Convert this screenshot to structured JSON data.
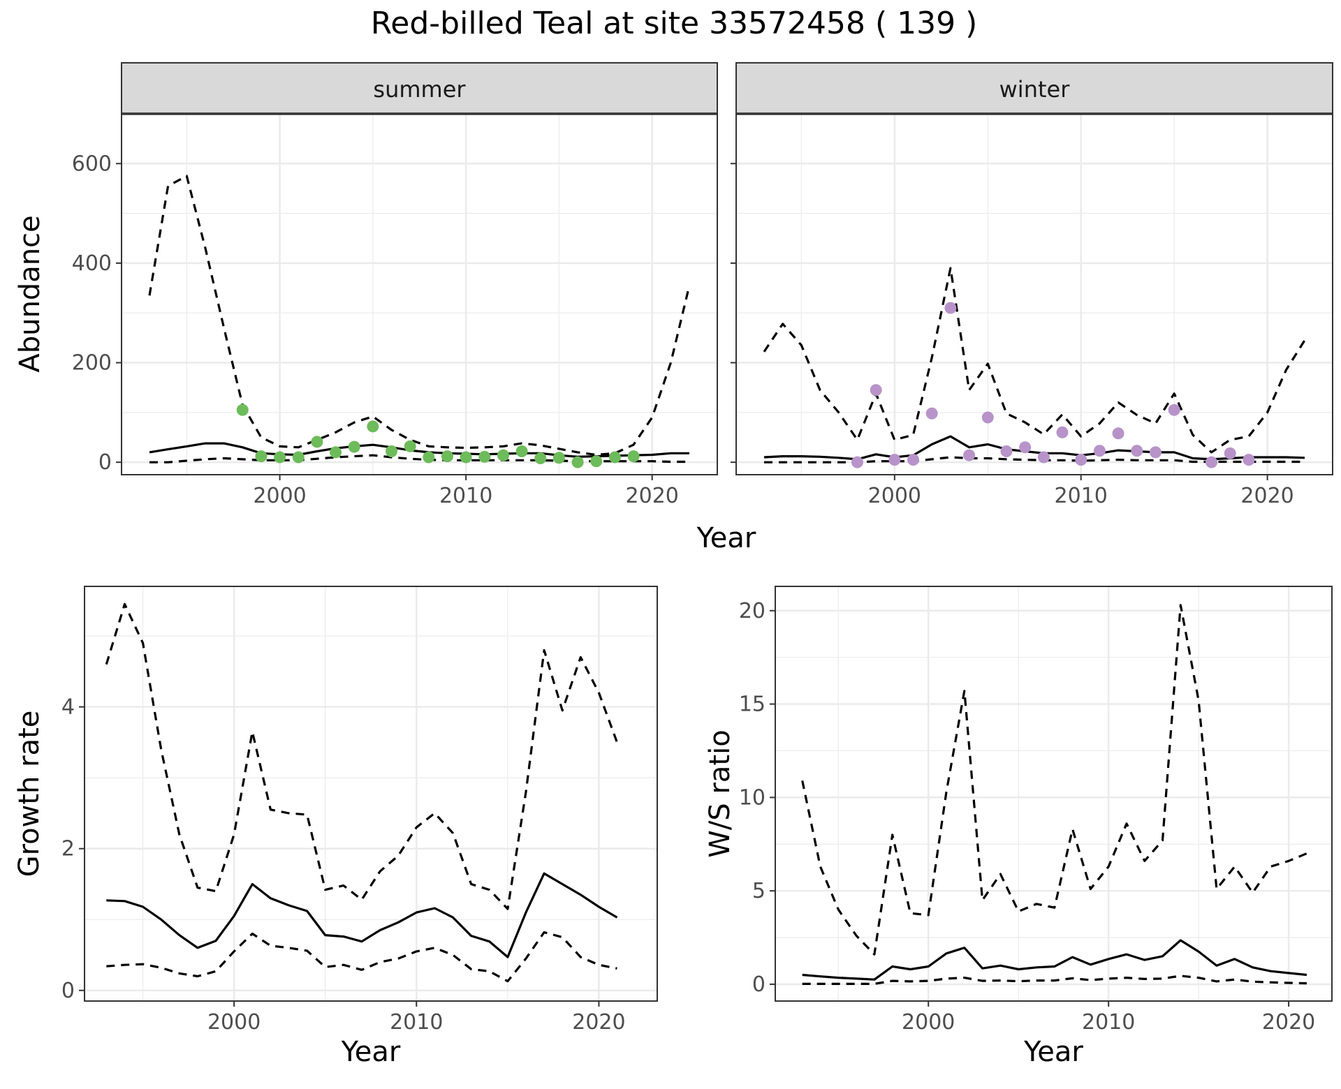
{
  "title": "Red-billed Teal at site 33572458 ( 139 )",
  "colors": {
    "summer_points": "#6dbb5a",
    "winter_points": "#b793c9",
    "lines": "#000000",
    "grid_major": "#ebebeb",
    "strip_background": "#d9d9d9",
    "panel_border": "#333333"
  },
  "chart_data": [
    {
      "type": "line",
      "panel": "abundance",
      "xlabel": "Year",
      "ylabel": "Abundance",
      "ylim": [
        -25,
        700
      ],
      "xlim": [
        1991.5,
        2023.5
      ],
      "yticks": [
        0,
        200,
        400,
        600
      ],
      "xticks": [
        2000,
        2010,
        2020
      ],
      "grid": true,
      "facets": [
        {
          "strip": "summer",
          "point_color": "summer_points",
          "mean": {
            "x": [
              1993,
              1994,
              1995,
              1996,
              1997,
              1998,
              1999,
              2000,
              2001,
              2002,
              2003,
              2004,
              2005,
              2006,
              2007,
              2008,
              2009,
              2010,
              2011,
              2012,
              2013,
              2014,
              2015,
              2016,
              2017,
              2018,
              2019,
              2020,
              2021,
              2022
            ],
            "y": [
              20,
              26,
              32,
              38,
              38,
              30,
              18,
              16,
              15,
              22,
              28,
              32,
              35,
              30,
              24,
              20,
              18,
              17,
              16,
              17,
              18,
              18,
              14,
              11,
              12,
              13,
              14,
              15,
              18,
              18
            ]
          },
          "upper": {
            "x": [
              1993,
              1994,
              1995,
              1996,
              1997,
              1998,
              1999,
              2000,
              2001,
              2002,
              2003,
              2004,
              2005,
              2006,
              2007,
              2008,
              2009,
              2010,
              2011,
              2012,
              2013,
              2014,
              2015,
              2016,
              2017,
              2018,
              2019,
              2020,
              2021,
              2022
            ],
            "y": [
              335,
              555,
              575,
              430,
              270,
              115,
              50,
              32,
              30,
              45,
              60,
              80,
              92,
              65,
              45,
              32,
              30,
              29,
              30,
              32,
              38,
              34,
              27,
              20,
              15,
              18,
              35,
              90,
              200,
              355
            ]
          },
          "lower": {
            "x": [
              1993,
              1994,
              1995,
              1996,
              1997,
              1998,
              1999,
              2000,
              2001,
              2002,
              2003,
              2004,
              2005,
              2006,
              2007,
              2008,
              2009,
              2010,
              2011,
              2012,
              2013,
              2014,
              2015,
              2016,
              2017,
              2018,
              2019,
              2020,
              2021,
              2022
            ],
            "y": [
              0,
              0,
              3,
              6,
              8,
              6,
              4,
              4,
              4,
              7,
              10,
              12,
              14,
              10,
              7,
              5,
              4,
              4,
              4,
              4,
              4,
              4,
              3,
              2,
              2,
              2,
              2,
              2,
              1,
              1
            ]
          },
          "observed": {
            "x": [
              1998,
              1999,
              2000,
              2001,
              2002,
              2003,
              2004,
              2005,
              2006,
              2007,
              2008,
              2009,
              2010,
              2011,
              2012,
              2013,
              2014,
              2015,
              2016,
              2017,
              2018,
              2019
            ],
            "y": [
              105,
              12,
              10,
              10,
              41,
              20,
              31,
              72,
              22,
              32,
              10,
              12,
              10,
              11,
              14,
              22,
              8,
              9,
              0,
              2,
              10,
              12
            ]
          }
        },
        {
          "strip": "winter",
          "point_color": "winter_points",
          "mean": {
            "x": [
              1993,
              1994,
              1995,
              1996,
              1997,
              1998,
              1999,
              2000,
              2001,
              2002,
              2003,
              2004,
              2005,
              2006,
              2007,
              2008,
              2009,
              2010,
              2011,
              2012,
              2013,
              2014,
              2015,
              2016,
              2017,
              2018,
              2019,
              2020,
              2021,
              2022
            ],
            "y": [
              10,
              12,
              12,
              11,
              9,
              6,
              16,
              10,
              14,
              36,
              52,
              30,
              36,
              26,
              22,
              18,
              18,
              14,
              18,
              24,
              22,
              20,
              20,
              8,
              6,
              8,
              10,
              10,
              10,
              9
            ]
          },
          "upper": {
            "x": [
              1993,
              1994,
              1995,
              1996,
              1997,
              1998,
              1999,
              2000,
              2001,
              2002,
              2003,
              2004,
              2005,
              2006,
              2007,
              2008,
              2009,
              2010,
              2011,
              2012,
              2013,
              2014,
              2015,
              2016,
              2017,
              2018,
              2019,
              2020,
              2021,
              2022
            ],
            "y": [
              222,
              278,
              235,
              145,
              100,
              45,
              138,
              45,
              55,
              210,
              390,
              145,
              198,
              98,
              80,
              56,
              96,
              52,
              78,
              120,
              95,
              78,
              138,
              55,
              20,
              45,
              52,
              100,
              185,
              245
            ]
          },
          "lower": {
            "x": [
              1993,
              1994,
              1995,
              1996,
              1997,
              1998,
              1999,
              2000,
              2001,
              2002,
              2003,
              2004,
              2005,
              2006,
              2007,
              2008,
              2009,
              2010,
              2011,
              2012,
              2013,
              2014,
              2015,
              2016,
              2017,
              2018,
              2019,
              2020,
              2021,
              2022
            ],
            "y": [
              0,
              0,
              0,
              0,
              0,
              0,
              2,
              2,
              2,
              6,
              10,
              8,
              8,
              6,
              5,
              4,
              4,
              3,
              4,
              5,
              4,
              4,
              4,
              1,
              1,
              1,
              1,
              1,
              1,
              1
            ]
          },
          "observed": {
            "x": [
              1998,
              1999,
              2000,
              2001,
              2002,
              2003,
              2004,
              2005,
              2006,
              2007,
              2008,
              2009,
              2010,
              2011,
              2012,
              2013,
              2014,
              2015,
              2017,
              2018,
              2019
            ],
            "y": [
              0,
              145,
              5,
              5,
              98,
              310,
              14,
              90,
              22,
              30,
              10,
              60,
              5,
              23,
              58,
              23,
              20,
              105,
              0,
              18,
              5
            ]
          }
        }
      ]
    },
    {
      "type": "line",
      "panel": "growth",
      "xlabel": "Year",
      "ylabel": "Growth rate",
      "ylim": [
        -0.15,
        5.7
      ],
      "xlim": [
        1991.8,
        2023.2
      ],
      "yticks": [
        0,
        2,
        4
      ],
      "xticks": [
        2000,
        2010,
        2020
      ],
      "grid": true,
      "mean": {
        "x": [
          1993,
          1994,
          1995,
          1996,
          1997,
          1998,
          1999,
          2000,
          2001,
          2002,
          2003,
          2004,
          2005,
          2006,
          2007,
          2008,
          2009,
          2010,
          2011,
          2012,
          2013,
          2014,
          2015,
          2016,
          2017,
          2018,
          2019,
          2020,
          2021
        ],
        "y": [
          1.27,
          1.26,
          1.18,
          1.0,
          0.78,
          0.6,
          0.7,
          1.05,
          1.5,
          1.3,
          1.2,
          1.12,
          0.78,
          0.76,
          0.69,
          0.85,
          0.96,
          1.1,
          1.16,
          1.03,
          0.77,
          0.69,
          0.47,
          1.1,
          1.65,
          1.5,
          1.35,
          1.18,
          1.03
        ]
      },
      "upper": {
        "x": [
          1993,
          1994,
          1995,
          1996,
          1997,
          1998,
          1999,
          2000,
          2001,
          2002,
          2003,
          2004,
          2005,
          2006,
          2007,
          2008,
          2009,
          2010,
          2011,
          2012,
          2013,
          2014,
          2015,
          2016,
          2017,
          2018,
          2019,
          2020,
          2021
        ],
        "y": [
          4.6,
          5.45,
          4.9,
          3.4,
          2.2,
          1.45,
          1.4,
          2.2,
          3.65,
          2.55,
          2.5,
          2.48,
          1.42,
          1.48,
          1.28,
          1.68,
          1.9,
          2.3,
          2.5,
          2.22,
          1.5,
          1.42,
          1.15,
          2.8,
          4.8,
          3.95,
          4.7,
          4.2,
          3.5
        ]
      },
      "lower": {
        "x": [
          1993,
          1994,
          1995,
          1996,
          1997,
          1998,
          1999,
          2000,
          2001,
          2002,
          2003,
          2004,
          2005,
          2006,
          2007,
          2008,
          2009,
          2010,
          2011,
          2012,
          2013,
          2014,
          2015,
          2016,
          2017,
          2018,
          2019,
          2020,
          2021
        ],
        "y": [
          0.34,
          0.36,
          0.37,
          0.32,
          0.24,
          0.2,
          0.27,
          0.55,
          0.8,
          0.63,
          0.6,
          0.56,
          0.33,
          0.36,
          0.29,
          0.4,
          0.45,
          0.55,
          0.6,
          0.5,
          0.3,
          0.27,
          0.13,
          0.45,
          0.82,
          0.75,
          0.47,
          0.36,
          0.31
        ]
      }
    },
    {
      "type": "line",
      "panel": "ratio",
      "xlabel": "Year",
      "ylabel": "W/S ratio",
      "ylim": [
        -0.9,
        21.3
      ],
      "xlim": [
        1991.5,
        2022.4
      ],
      "yticks": [
        0,
        5,
        10,
        15,
        20
      ],
      "xticks": [
        2000,
        2010,
        2020
      ],
      "grid": true,
      "mean": {
        "x": [
          1993,
          1994,
          1995,
          1996,
          1997,
          1998,
          1999,
          2000,
          2001,
          2002,
          2003,
          2004,
          2005,
          2006,
          2007,
          2008,
          2009,
          2010,
          2011,
          2012,
          2013,
          2014,
          2015,
          2016,
          2017,
          2018,
          2019,
          2020,
          2021
        ],
        "y": [
          0.5,
          0.42,
          0.35,
          0.3,
          0.25,
          0.95,
          0.8,
          0.95,
          1.65,
          1.95,
          0.85,
          1.0,
          0.8,
          0.9,
          0.95,
          1.45,
          1.05,
          1.35,
          1.6,
          1.3,
          1.5,
          2.35,
          1.75,
          1.0,
          1.35,
          0.9,
          0.7,
          0.6,
          0.5
        ]
      },
      "upper": {
        "x": [
          1993,
          1994,
          1995,
          1996,
          1997,
          1998,
          1999,
          2000,
          2001,
          2002,
          2003,
          2004,
          2005,
          2006,
          2007,
          2008,
          2009,
          2010,
          2011,
          2012,
          2013,
          2014,
          2015,
          2016,
          2017,
          2018,
          2019,
          2020,
          2021
        ],
        "y": [
          10.9,
          6.3,
          4.0,
          2.6,
          1.6,
          8.0,
          3.8,
          3.7,
          10.3,
          15.7,
          4.5,
          5.9,
          3.9,
          4.3,
          4.1,
          8.3,
          5.1,
          6.3,
          8.6,
          6.6,
          7.7,
          20.3,
          15.2,
          5.1,
          6.3,
          4.9,
          6.3,
          6.6,
          7.0
        ]
      },
      "lower": {
        "x": [
          1993,
          1994,
          1995,
          1996,
          1997,
          1998,
          1999,
          2000,
          2001,
          2002,
          2003,
          2004,
          2005,
          2006,
          2007,
          2008,
          2009,
          2010,
          2011,
          2012,
          2013,
          2014,
          2015,
          2016,
          2017,
          2018,
          2019,
          2020,
          2021
        ],
        "y": [
          0.02,
          0.02,
          0.02,
          0.02,
          0.02,
          0.18,
          0.15,
          0.18,
          0.3,
          0.35,
          0.18,
          0.2,
          0.16,
          0.2,
          0.2,
          0.32,
          0.22,
          0.3,
          0.35,
          0.28,
          0.3,
          0.45,
          0.35,
          0.15,
          0.25,
          0.14,
          0.1,
          0.07,
          0.05
        ]
      }
    }
  ]
}
